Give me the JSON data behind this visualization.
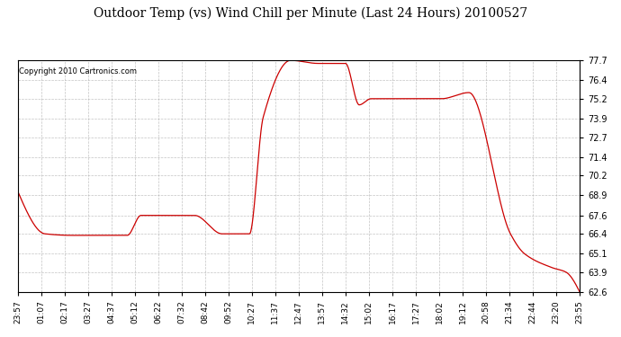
{
  "title": "Outdoor Temp (vs) Wind Chill per Minute (Last 24 Hours) 20100527",
  "copyright_text": "Copyright 2010 Cartronics.com",
  "line_color": "#cc0000",
  "background_color": "#ffffff",
  "grid_color": "#aaaaaa",
  "ylim": [
    62.6,
    77.7
  ],
  "yticks": [
    62.6,
    63.9,
    65.1,
    66.4,
    67.6,
    68.9,
    70.2,
    71.4,
    72.7,
    73.9,
    75.2,
    76.4,
    77.7
  ],
  "x_labels": [
    "23:57",
    "01:07",
    "02:17",
    "03:27",
    "04:37",
    "05:12",
    "06:22",
    "07:32",
    "08:42",
    "09:52",
    "10:27",
    "11:37",
    "12:47",
    "13:57",
    "14:32",
    "15:02",
    "16:17",
    "17:27",
    "18:02",
    "19:12",
    "20:58",
    "21:34",
    "22:44",
    "23:20",
    "23:55"
  ],
  "data_x": [
    0,
    70,
    140,
    210,
    280,
    315,
    382,
    452,
    522,
    592,
    627,
    697,
    767,
    837,
    872,
    902,
    977,
    1047,
    1082,
    1152,
    1258,
    1294,
    1364,
    1400,
    1435
  ],
  "data_y": [
    69.2,
    66.4,
    66.3,
    66.3,
    66.3,
    67.6,
    67.6,
    67.6,
    66.4,
    66.4,
    74.0,
    77.7,
    77.5,
    77.5,
    74.8,
    75.2,
    75.2,
    75.2,
    75.2,
    75.6,
    66.4,
    65.1,
    64.2,
    63.9,
    62.6
  ]
}
